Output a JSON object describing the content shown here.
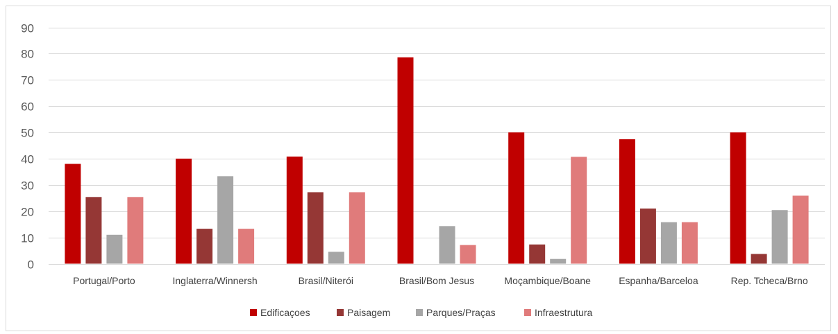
{
  "chart_data": {
    "type": "bar",
    "categories": [
      "Portugal/Porto",
      "Inglaterra/Winnersh",
      "Brasil/Niterói",
      "Brasil/Bom Jesus",
      "Moçambique/Boane",
      "Espanha/Barceloa",
      "Rep. Tcheca/Brno"
    ],
    "series": [
      {
        "name": "Edificaçoes",
        "color": "#c00000",
        "values": [
          38,
          40,
          40.8,
          78.6,
          50,
          47.4,
          50
        ]
      },
      {
        "name": "Paisagem",
        "color": "#953735",
        "values": [
          25.4,
          13.3,
          27.2,
          0,
          7.3,
          21,
          3.7
        ]
      },
      {
        "name": "Parques/Praças",
        "color": "#a6a6a6",
        "values": [
          11,
          33.3,
          4.5,
          14.3,
          1.8,
          15.8,
          20.4
        ]
      },
      {
        "name": "Infraestrutura",
        "color": "#e07b7b",
        "values": [
          25.4,
          13.3,
          27.2,
          7.1,
          40.7,
          15.8,
          25.9
        ]
      }
    ],
    "yticks": [
      "0",
      "10",
      "20",
      "30",
      "40",
      "50",
      "60",
      "70",
      "80",
      "90"
    ],
    "ylim": [
      0,
      90
    ],
    "grid": true,
    "legend": "bottom"
  }
}
